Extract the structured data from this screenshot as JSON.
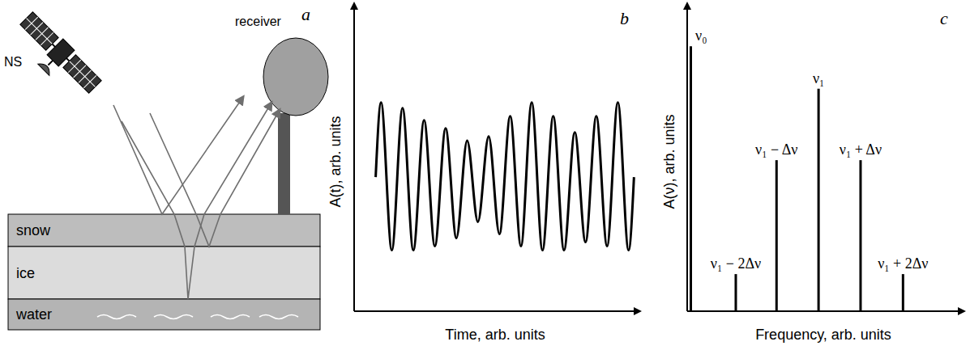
{
  "diagram": {
    "panel": "a",
    "satellite_label": "NS",
    "receiver_label": "receiver",
    "layers": [
      "snow",
      "ice",
      "water"
    ]
  },
  "chart_data": [
    {
      "type": "line",
      "panel": "b",
      "x": [
        1,
        1.25,
        1.75,
        2.25,
        2.75,
        3.25,
        3.75,
        4.25,
        4.75,
        5.25,
        5.75,
        6.25,
        6.75,
        7.25,
        7.75,
        8.25,
        8.75,
        9.25,
        9.75,
        10.25,
        10.75,
        11.25,
        11.75,
        12.25,
        12.75,
        13
      ],
      "values": [
        0,
        0.92,
        -0.9,
        0.85,
        -0.9,
        0.7,
        -0.85,
        0.6,
        -0.75,
        0.45,
        -0.55,
        0.5,
        -0.7,
        0.75,
        -0.85,
        0.92,
        -0.9,
        0.75,
        -0.9,
        0.55,
        -0.8,
        0.75,
        -0.85,
        0.92,
        -0.9,
        0
      ],
      "xlabel": "Time, arb. units",
      "ylabel": "A(t), arb. units",
      "xlim": [
        0,
        13.1
      ],
      "ylim": [
        -1.65,
        2.1
      ],
      "tick_labels": false,
      "color": "#000000"
    },
    {
      "type": "bar",
      "panel": "c",
      "categories": [
        "ν₀",
        "ν₁ − 2Δν",
        "ν₁ − Δν",
        "ν₁",
        "ν₁ + Δν",
        "ν₁ + 2Δν"
      ],
      "x": [
        0.08,
        1.15,
        2.12,
        3.12,
        4.12,
        5.13
      ],
      "values": [
        1.0,
        0.14,
        0.57,
        0.84,
        0.57,
        0.14
      ],
      "xlabel": "Frequency, arb. units",
      "ylabel": "A(ν), arb. units",
      "xlim": [
        0,
        6.5
      ],
      "ylim": [
        0,
        1.15
      ],
      "tick_labels": false,
      "color": "#000000"
    }
  ]
}
